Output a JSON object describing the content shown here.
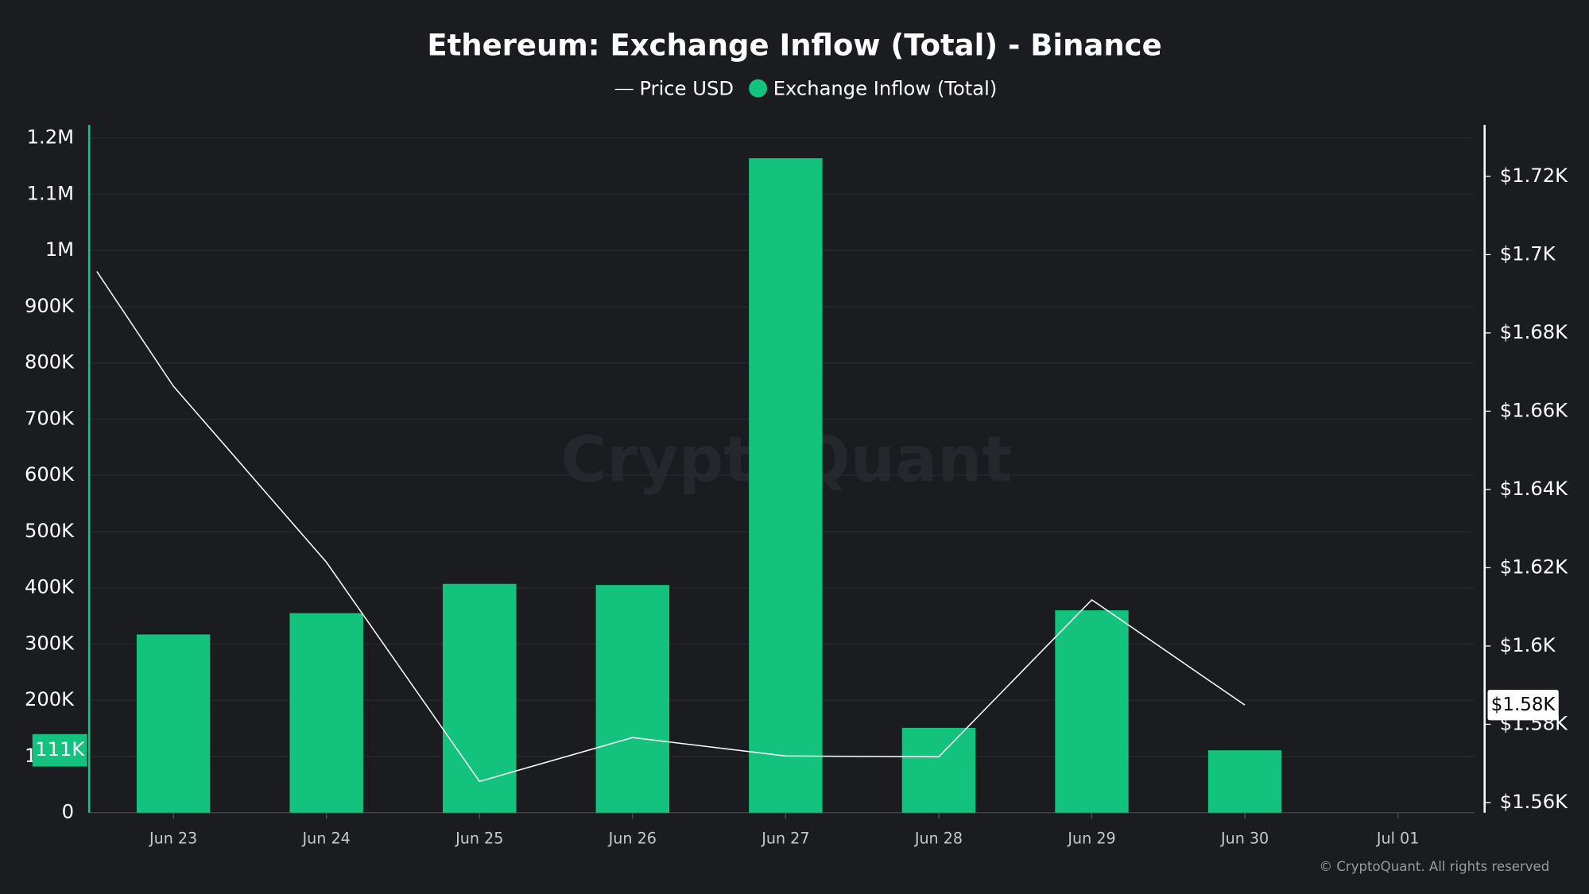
{
  "chart_data": {
    "type": "bar",
    "title": "Ethereum: Exchange Inflow (Total) - Binance",
    "watermark": "CryptoQuant",
    "credit": "© CryptoQuant. All rights reserved",
    "xlim": [
      -0.55,
      8.5
    ],
    "xticks": [
      {
        "value": 0,
        "label": "Jun 23"
      },
      {
        "value": 1,
        "label": "Jun 24"
      },
      {
        "value": 2,
        "label": "Jun 25"
      },
      {
        "value": 3,
        "label": "Jun 26"
      },
      {
        "value": 4,
        "label": "Jun 27"
      },
      {
        "value": 5,
        "label": "Jun 28"
      },
      {
        "value": 6,
        "label": "Jun 29"
      },
      {
        "value": 7,
        "label": "Jun 30"
      },
      {
        "value": 8,
        "label": "Jul 01"
      }
    ],
    "ylim": [
      0,
      1200000
    ],
    "yticks": [
      0,
      {
        "value": 100000,
        "label": "100K"
      },
      {
        "value": 200000,
        "label": "200K"
      },
      {
        "value": 300000,
        "label": "300K"
      },
      {
        "value": 400000,
        "label": "400K"
      },
      {
        "value": 500000,
        "label": "500K"
      },
      {
        "value": 600000,
        "label": "600K"
      },
      {
        "value": 700000,
        "label": "700K"
      },
      {
        "value": 800000,
        "label": "800K"
      },
      {
        "value": 900000,
        "label": "900K"
      },
      {
        "value": 1000000,
        "label": "1M"
      },
      {
        "value": 1100000,
        "label": "1.1M"
      },
      {
        "value": 1200000,
        "label": "1.2M"
      }
    ],
    "y2lim": [
      1557.4,
      1729.8
    ],
    "y2ticks": [
      {
        "value": 1560,
        "label": "$1.56K"
      },
      {
        "value": 1580,
        "label": "$1.58K"
      },
      {
        "value": 1600,
        "label": "$1.6K"
      },
      {
        "value": 1620,
        "label": "$1.62K"
      },
      {
        "value": 1640,
        "label": "$1.64K"
      },
      {
        "value": 1660,
        "label": "$1.66K"
      },
      {
        "value": 1680,
        "label": "$1.68K"
      },
      {
        "value": 1700,
        "label": "$1.7K"
      },
      {
        "value": 1720,
        "label": "$1.72K"
      }
    ],
    "grid": true,
    "legend": "top",
    "series": [
      {
        "name": "Price USD",
        "type": "line",
        "axis": "y2",
        "color": "#ffffff",
        "x": [
          -0.5,
          0,
          1,
          2,
          3,
          4,
          5,
          6,
          7
        ],
        "values": [
          1695.7,
          1666.4,
          1621.4,
          1565.4,
          1576.6,
          1571.9,
          1571.7,
          1611.8,
          1584.9
        ],
        "value_labels": [
          null,
          null,
          null,
          null,
          null,
          null,
          null,
          null,
          "$1.58K"
        ]
      },
      {
        "name": "Exchange Inflow (Total)",
        "type": "bar",
        "color": "#12c27d",
        "x": [
          0,
          1,
          2,
          3,
          4,
          5,
          6,
          7
        ],
        "values": [
          317000,
          355000,
          407000,
          405000,
          1164000,
          151000,
          360000,
          111000
        ],
        "value_labels": [
          null,
          null,
          null,
          null,
          null,
          null,
          null,
          "111K"
        ]
      }
    ]
  }
}
